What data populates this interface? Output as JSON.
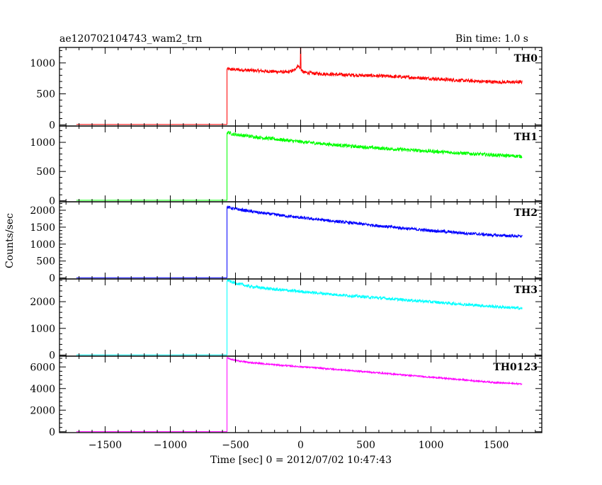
{
  "header": {
    "title": "ae120702104743_wam2_trn",
    "bin_time": "Bin time: 1.0 s"
  },
  "axes": {
    "xlabel": "Time [sec] 0 = 2012/07/02 10:47:43",
    "ylabel": "Counts/sec"
  },
  "chart_data": {
    "type": "line",
    "title": "ae120702104743_wam2_trn",
    "subtitle": "Bin time: 1.0 s",
    "xlabel": "Time [sec] 0 = 2012/07/02 10:47:43",
    "ylabel": "Counts/sec",
    "xlim": [
      -1850,
      1850
    ],
    "x_ticks": [
      -1500,
      -1000,
      -500,
      0,
      500,
      1000,
      1500
    ],
    "x_tick_labels": [
      "−1500",
      "−1000",
      "−500",
      "0",
      "500",
      "1000",
      "1500"
    ],
    "grid": false,
    "legend": "panel labels top-right",
    "panels": [
      {
        "name": "TH0",
        "color": "#ff0000",
        "ylim": [
          -20,
          1250
        ],
        "y_ticks": [
          0,
          500,
          1000
        ],
        "y_tick_labels": [
          "0",
          "500",
          "1000"
        ],
        "pre_start": -1720,
        "pre_level": 5,
        "onset": -565,
        "x": [
          -565,
          -400,
          -200,
          -100,
          -50,
          -20,
          0,
          20,
          100,
          300,
          600,
          900,
          1200,
          1500,
          1700
        ],
        "y": [
          900,
          880,
          860,
          850,
          880,
          960,
          900,
          850,
          830,
          810,
          790,
          760,
          720,
          690,
          690
        ],
        "spike": {
          "x": 0,
          "y": 1250
        },
        "noise": 28
      },
      {
        "name": "TH1",
        "color": "#00ff00",
        "ylim": [
          -20,
          1280
        ],
        "y_ticks": [
          0,
          500,
          1000
        ],
        "y_tick_labels": [
          "0",
          "500",
          "1000"
        ],
        "pre_start": -1720,
        "pre_level": 5,
        "onset": -565,
        "x": [
          -565,
          -520,
          -300,
          0,
          300,
          600,
          900,
          1200,
          1500,
          1700
        ],
        "y": [
          1180,
          1140,
          1080,
          1010,
          950,
          900,
          860,
          820,
          780,
          760
        ],
        "noise": 30
      },
      {
        "name": "TH2",
        "color": "#0000ff",
        "ylim": [
          -30,
          2250
        ],
        "y_ticks": [
          0,
          500,
          1000,
          1500,
          2000
        ],
        "y_tick_labels": [
          "0",
          "500",
          "1000",
          "1500",
          "2000"
        ],
        "pre_start": -1720,
        "pre_level": 5,
        "onset": -565,
        "x": [
          -565,
          -520,
          -300,
          0,
          300,
          600,
          900,
          1200,
          1500,
          1700
        ],
        "y": [
          2100,
          2050,
          1920,
          1780,
          1660,
          1540,
          1430,
          1340,
          1260,
          1230
        ],
        "noise": 45
      },
      {
        "name": "TH3",
        "color": "#00ffff",
        "ylim": [
          -40,
          2850
        ],
        "y_ticks": [
          0,
          1000,
          2000
        ],
        "y_tick_labels": [
          "0",
          "1000",
          "2000"
        ],
        "pre_start": -1720,
        "pre_level": 5,
        "onset": -565,
        "x": [
          -565,
          -520,
          -400,
          -200,
          0,
          300,
          600,
          900,
          1200,
          1500,
          1700
        ],
        "y": [
          2800,
          2720,
          2580,
          2460,
          2380,
          2250,
          2140,
          2030,
          1920,
          1810,
          1750
        ],
        "noise": 55
      },
      {
        "name": "TH0123",
        "color": "#ff00ff",
        "ylim": [
          -80,
          7000
        ],
        "y_ticks": [
          0,
          2000,
          4000,
          6000
        ],
        "y_tick_labels": [
          "0",
          "2000",
          "4000",
          "6000"
        ],
        "pre_start": -1720,
        "pre_level": 10,
        "onset": -565,
        "x": [
          -565,
          -520,
          -400,
          -200,
          0,
          300,
          600,
          900,
          1200,
          1500,
          1700
        ],
        "y": [
          6850,
          6650,
          6420,
          6200,
          6020,
          5750,
          5450,
          5150,
          4850,
          4550,
          4420
        ],
        "noise": 70
      }
    ]
  }
}
